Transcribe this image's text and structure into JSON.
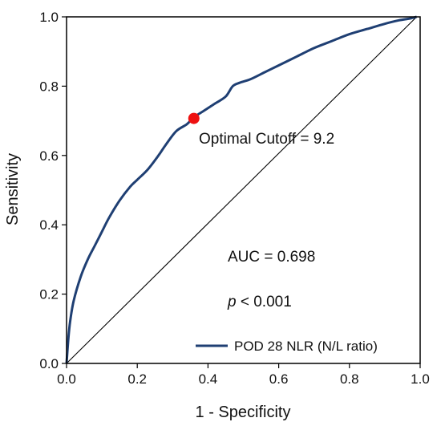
{
  "chart_data": {
    "type": "line",
    "xlabel": "1 - Specificity",
    "ylabel": "Sensitivity",
    "xlim": [
      0,
      1
    ],
    "ylim": [
      0,
      1
    ],
    "x_ticks": [
      "0.0",
      "0.2",
      "0.4",
      "0.6",
      "0.8",
      "1.0"
    ],
    "y_ticks": [
      "0.0",
      "0.2",
      "0.4",
      "0.6",
      "0.8",
      "1.0"
    ],
    "grid": false,
    "legend_position": "bottom-right",
    "series": [
      {
        "name": "POD 28 NLR (N/L ratio)",
        "color": "#1f3f73",
        "x": [
          0,
          0.005,
          0.01,
          0.02,
          0.04,
          0.06,
          0.08,
          0.1,
          0.12,
          0.15,
          0.18,
          0.2,
          0.23,
          0.26,
          0.28,
          0.31,
          0.34,
          0.36,
          0.39,
          0.42,
          0.45,
          0.47,
          0.49,
          0.52,
          0.56,
          0.6,
          0.65,
          0.7,
          0.75,
          0.8,
          0.85,
          0.9,
          0.94,
          0.97,
          0.99
        ],
        "y": [
          0,
          0.07,
          0.12,
          0.18,
          0.25,
          0.3,
          0.34,
          0.38,
          0.42,
          0.47,
          0.51,
          0.53,
          0.56,
          0.6,
          0.63,
          0.67,
          0.69,
          0.71,
          0.73,
          0.75,
          0.77,
          0.8,
          0.81,
          0.82,
          0.84,
          0.86,
          0.885,
          0.91,
          0.93,
          0.95,
          0.965,
          0.98,
          0.99,
          0.995,
          1.0
        ]
      }
    ],
    "reference_line": {
      "x": [
        0,
        0.99
      ],
      "y": [
        0,
        1.0
      ],
      "color": "#000000"
    },
    "optimal_point": {
      "x": 0.36,
      "y": 0.707,
      "color": "#ee1111"
    },
    "annotations": {
      "cutoff": "Optimal Cutoff = 9.2",
      "auc": "AUC = 0.698",
      "p_symbol": "p",
      "p_rest": " < 0.001"
    }
  }
}
